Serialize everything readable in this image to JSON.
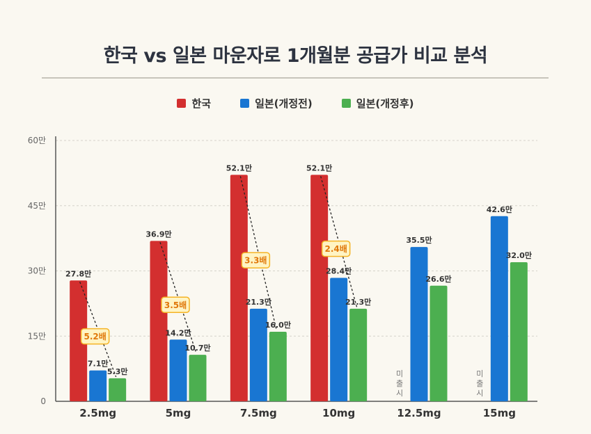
{
  "chart_data": {
    "type": "bar",
    "title": "한국 vs 일본 마운자로 1개월분 공급가 비교 분석",
    "categories": [
      "2.5mg",
      "5mg",
      "7.5mg",
      "10mg",
      "12.5mg",
      "15mg"
    ],
    "series": [
      {
        "name": "한국",
        "color": "#d32f2f",
        "values": [
          27.8,
          36.9,
          52.1,
          52.1,
          null,
          null
        ],
        "labels": [
          "27.8만",
          "36.9만",
          "52.1만",
          "52.1만",
          null,
          null
        ]
      },
      {
        "name": "일본(개정전)",
        "color": "#1976d2",
        "values": [
          7.1,
          14.2,
          21.3,
          28.4,
          35.5,
          42.6
        ],
        "labels": [
          "7.1만",
          "14.2만",
          "21.3만",
          "28.4만",
          "35.5만",
          "42.6만"
        ]
      },
      {
        "name": "일본(개정후)",
        "color": "#4caf50",
        "values": [
          5.3,
          10.7,
          16.0,
          21.3,
          26.6,
          32.0
        ],
        "labels": [
          "5.3만",
          "10.7만",
          "16.0만",
          "21.3만",
          "26.6만",
          "32.0만"
        ]
      }
    ],
    "ratios": [
      "5.2배",
      "3.5배",
      "3.3배",
      "2.4배",
      null,
      null
    ],
    "not_released_label": "미출시",
    "y_ticks": [
      "0",
      "15만",
      "30만",
      "45만",
      "60만"
    ],
    "ylim": [
      0,
      60
    ],
    "grid": true,
    "legend_position": "top-center"
  }
}
